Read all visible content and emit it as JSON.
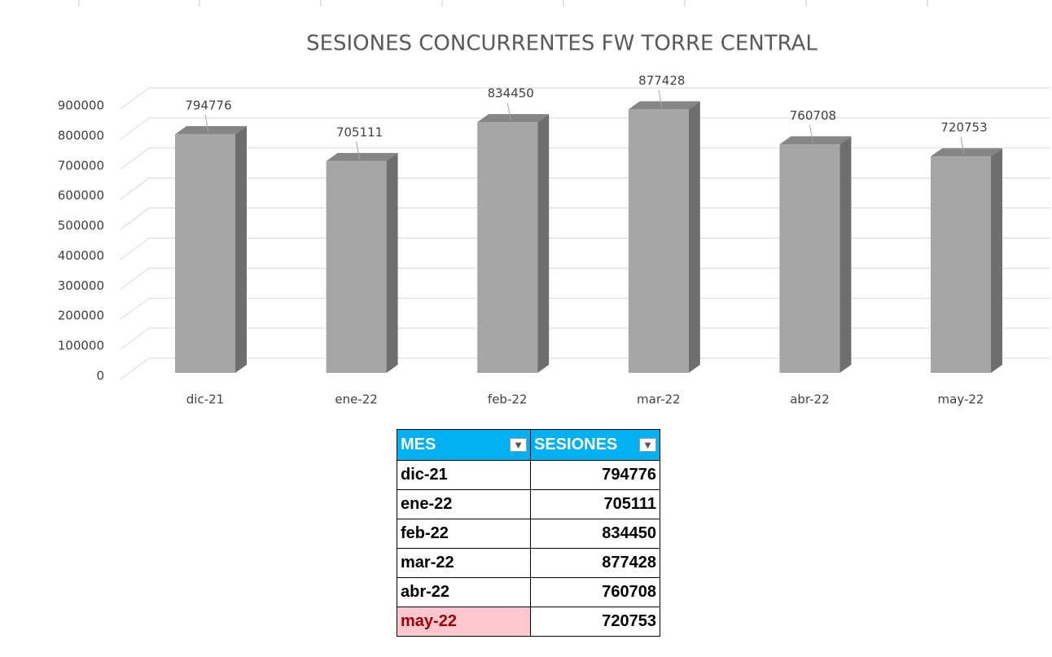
{
  "chart_data": {
    "type": "bar",
    "title": "SESIONES CONCURRENTES FW TORRE CENTRAL",
    "categories": [
      "dic-21",
      "ene-22",
      "feb-22",
      "mar-22",
      "abr-22",
      "may-22"
    ],
    "values": [
      794776,
      705111,
      834450,
      877428,
      760708,
      720753
    ],
    "color": "#a6a6a6",
    "ylim": [
      0,
      900000
    ],
    "yticks": [
      0,
      100000,
      200000,
      300000,
      400000,
      500000,
      600000,
      700000,
      800000,
      900000
    ],
    "grid": true
  },
  "table": {
    "headers": [
      "MES",
      "SESIONES"
    ],
    "rows": [
      [
        "dic-21",
        "794776"
      ],
      [
        "ene-22",
        "705111"
      ],
      [
        "feb-22",
        "834450"
      ],
      [
        "mar-22",
        "877428"
      ],
      [
        "abr-22",
        "760708"
      ],
      [
        "may-22",
        "720753"
      ]
    ]
  }
}
